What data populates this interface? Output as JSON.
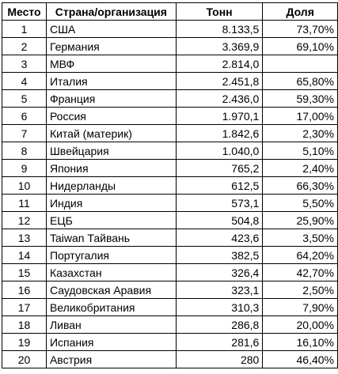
{
  "table": {
    "headers": {
      "rank": "Место",
      "country": "Страна/организация",
      "tons": "Тонн",
      "share": "Доля"
    },
    "rows": [
      {
        "rank": "1",
        "country": "США",
        "tons": "8.133,5",
        "share": "73,70%"
      },
      {
        "rank": "2",
        "country": "Германия",
        "tons": "3.369,9",
        "share": "69,10%"
      },
      {
        "rank": "3",
        "country": "МВФ",
        "tons": "2.814,0",
        "share": ""
      },
      {
        "rank": "4",
        "country": "Италия",
        "tons": "2.451,8",
        "share": "65,80%"
      },
      {
        "rank": "5",
        "country": "Франция",
        "tons": "2.436,0",
        "share": "59,30%"
      },
      {
        "rank": "6",
        "country": "Россия",
        "tons": "1.970,1",
        "share": "17,00%"
      },
      {
        "rank": "7",
        "country": "Китай (материк)",
        "tons": "1.842,6",
        "share": "2,30%"
      },
      {
        "rank": "8",
        "country": "Швейцария",
        "tons": "1.040,0",
        "share": "5,10%"
      },
      {
        "rank": "9",
        "country": "Япония",
        "tons": "765,2",
        "share": "2,40%"
      },
      {
        "rank": "10",
        "country": "Нидерланды",
        "tons": "612,5",
        "share": "66,30%"
      },
      {
        "rank": "11",
        "country": "Индия",
        "tons": "573,1",
        "share": "5,50%"
      },
      {
        "rank": "12",
        "country": "ЕЦБ",
        "tons": "504,8",
        "share": "25,90%"
      },
      {
        "rank": "13",
        "country": "Taiwan Тайвань",
        "tons": "423,6",
        "share": "3,50%"
      },
      {
        "rank": "14",
        "country": "Португалия",
        "tons": "382,5",
        "share": "64,20%"
      },
      {
        "rank": "15",
        "country": "Казахстан",
        "tons": "326,4",
        "share": "42,70%"
      },
      {
        "rank": "16",
        "country": "Саудовская Аравия",
        "tons": "323,1",
        "share": "2,50%"
      },
      {
        "rank": "17",
        "country": "Великобритания",
        "tons": "310,3",
        "share": "7,90%"
      },
      {
        "rank": "18",
        "country": "Ливан",
        "tons": "286,8",
        "share": "20,00%"
      },
      {
        "rank": "19",
        "country": "Испания",
        "tons": "281,6",
        "share": "16,10%"
      },
      {
        "rank": "20",
        "country": "Австрия",
        "tons": "280",
        "share": "46,40%"
      }
    ]
  }
}
